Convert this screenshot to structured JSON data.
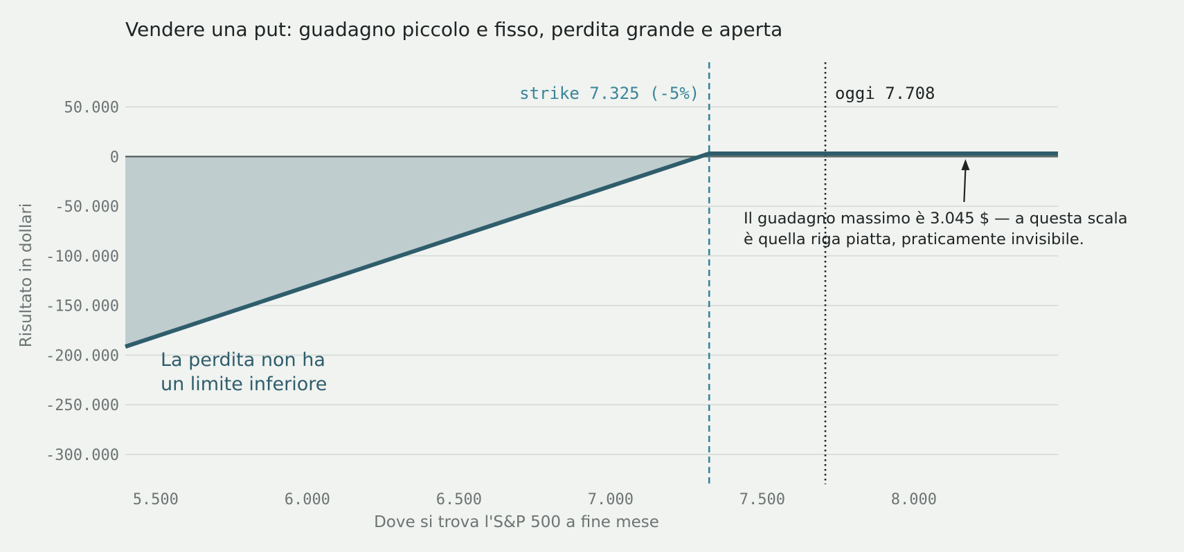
{
  "chart_data": {
    "type": "line",
    "title": "Vendere una put: guadagno piccolo e fisso, perdita grande e aperta",
    "xlabel": "Dove si trova l'S&P 500 a fine mese",
    "ylabel": "Risultato in dollari",
    "xlim": [
      5400,
      8475
    ],
    "ylim": [
      -330000,
      95000
    ],
    "x_ticks": [
      5500,
      6000,
      6500,
      7000,
      7500,
      8000
    ],
    "x_tick_labels": [
      "5.500",
      "6.000",
      "6.500",
      "7.000",
      "7.500",
      "8.000"
    ],
    "y_ticks": [
      50000,
      0,
      -50000,
      -100000,
      -150000,
      -200000,
      -250000,
      -300000
    ],
    "y_tick_labels": [
      "50.000",
      "0",
      "-50.000",
      "-100.000",
      "-150.000",
      "-200.000",
      "-250.000",
      "-300.000"
    ],
    "grid": true,
    "series": [
      {
        "x": [
          5400,
          7325,
          8475
        ],
        "y": [
          -191455,
          3045,
          3045
        ],
        "color": "#2f5d6c",
        "fill_below_zero": true,
        "fill_color": "#bfcdce"
      }
    ],
    "vlines": [
      {
        "x": 7325,
        "label": "strike 7.325 (-5%)",
        "style": "dashed",
        "color": "#3a8499"
      },
      {
        "x": 7708,
        "label": "oggi 7.708",
        "style": "dotted",
        "color": "#1e2424"
      }
    ],
    "annotations": {
      "max_gain": {
        "lines": [
          "Il guadagno massimo è 3.045 $ — a questa scala",
          "è quella riga piatta, praticamente invisibile."
        ],
        "arrow_target": {
          "x": 8170,
          "y": 3045
        }
      },
      "loss": {
        "lines": [
          "La perdita non ha",
          "un limite inferiore"
        ]
      }
    }
  }
}
